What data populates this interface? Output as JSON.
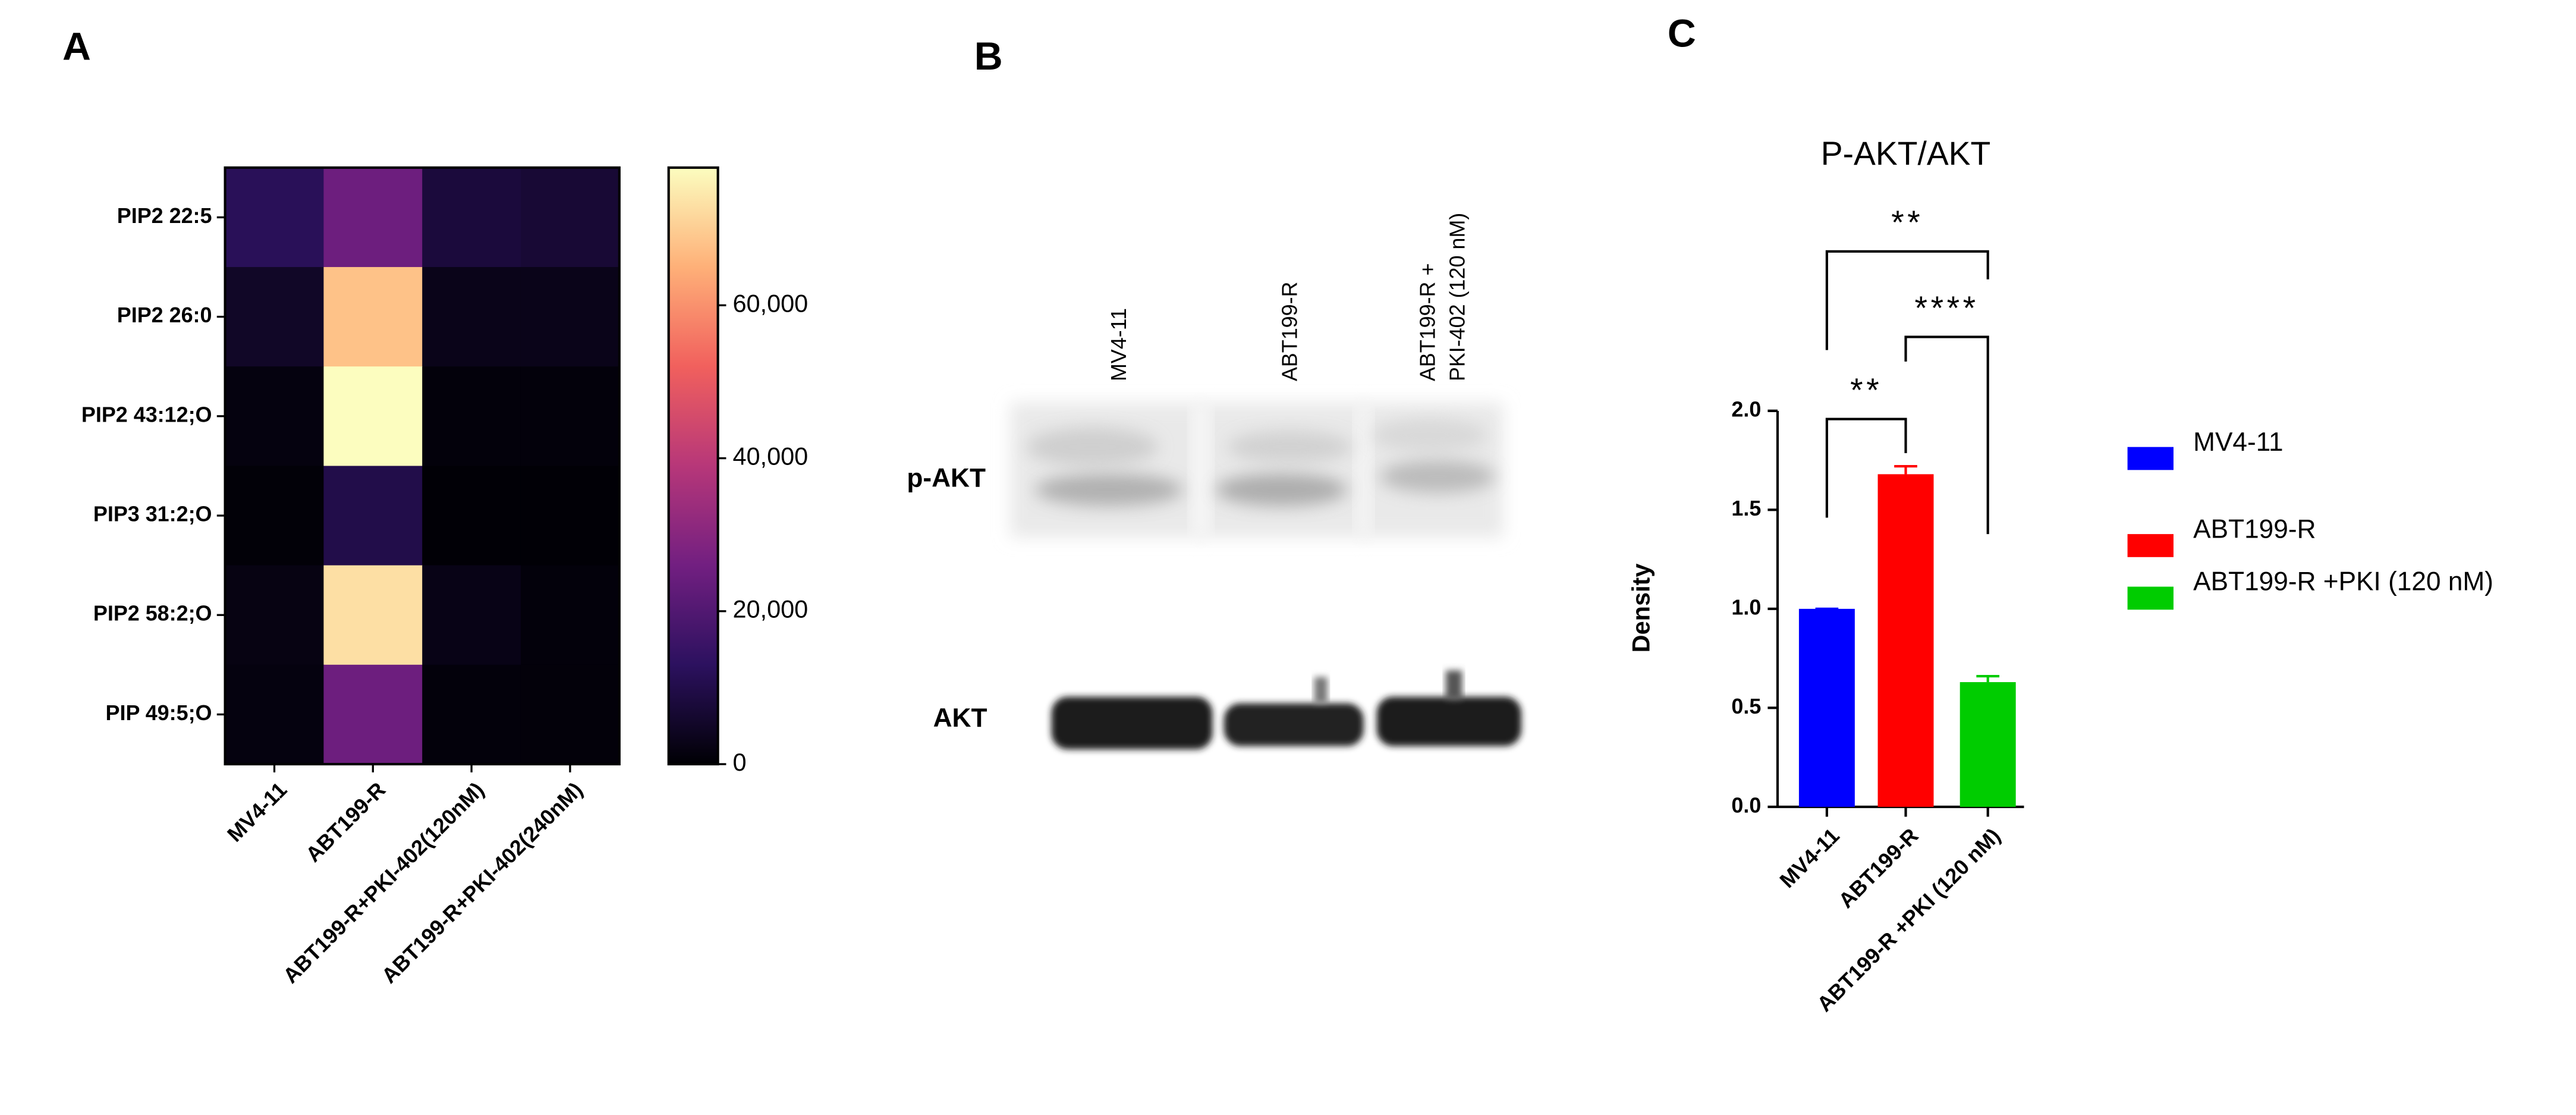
{
  "panel_labels": [
    "A",
    "B",
    "C"
  ],
  "chart_data": [
    {
      "type": "heatmap",
      "rows": [
        "PIP2 22:5",
        "PIP2 26:0",
        "PIP2 43:12;O",
        "PIP3 31:2;O",
        "PIP2 58:2;O",
        "PIP 49:5;O"
      ],
      "columns": [
        "MV4-11",
        "ABT199-R",
        "ABT199-R+PKI-402(120nM)",
        "ABT199-R+PKI-402(240nM)"
      ],
      "values": [
        [
          12000,
          25000,
          8000,
          7000
        ],
        [
          5000,
          68000,
          3000,
          3000
        ],
        [
          1500,
          78000,
          1000,
          1000
        ],
        [
          500,
          10000,
          300,
          300
        ],
        [
          2000,
          73000,
          2500,
          1000
        ],
        [
          1500,
          25000,
          1000,
          800
        ]
      ],
      "colormap": [
        "#000004",
        "#2c115f",
        "#721f81",
        "#b73779",
        "#f1605d",
        "#feb078",
        "#fcfdbf"
      ],
      "clim": [
        0,
        78000
      ],
      "cticks": [
        0,
        {
          "value": 20000,
          "label": "20,000"
        },
        {
          "value": 40000,
          "label": "40,000"
        },
        {
          "value": 60000,
          "label": "60,000"
        }
      ]
    },
    {
      "type": "bar",
      "title": "P-AKT/AKT",
      "ylabel": "Density",
      "categories": [
        "MV4-11",
        "ABT199-R",
        "ABT199-R +PKI (120 nM)"
      ],
      "values": [
        1.0,
        1.68,
        0.63
      ],
      "errors": [
        0,
        0.04,
        0.03
      ],
      "colors": [
        "#0000ff",
        "#ff0000",
        "#00cc00"
      ],
      "ylim": [
        0,
        2
      ],
      "yticks": [
        {
          "value": 0,
          "label": "0.0"
        },
        0.5,
        {
          "value": 1,
          "label": "1.0"
        },
        1.5,
        {
          "value": 2,
          "label": "2.0"
        }
      ],
      "significance": [
        {
          "from": "MV4-11",
          "to": "ABT199-R",
          "label": "**"
        },
        {
          "from": "ABT199-R",
          "to": "ABT199-R +PKI (120 nM)",
          "label": "****"
        },
        {
          "from": "MV4-11",
          "to": "ABT199-R +PKI (120 nM)",
          "label": "**"
        }
      ],
      "legend": "right"
    }
  ],
  "blot": {
    "lanes": [
      [
        "MV4-11"
      ],
      [
        "ABT199-R"
      ],
      [
        "ABT199-R +",
        "PKI-402 (120 nM)"
      ]
    ],
    "bands": [
      "p-AKT",
      "AKT"
    ]
  }
}
